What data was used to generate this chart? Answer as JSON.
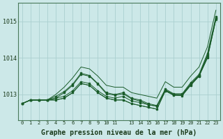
{
  "background_color": "#cce8e8",
  "grid_color": "#aad0d0",
  "line_color": "#1a5c2a",
  "marker_color": "#1a5c2a",
  "xlabel": "Graphe pression niveau de la mer (hPa)",
  "xlabel_fontsize": 7,
  "xtick_labels": [
    "0",
    "1",
    "2",
    "3",
    "4",
    "5",
    "6",
    "7",
    "8",
    "9",
    "10",
    "11",
    "",
    "13",
    "14",
    "15",
    "16",
    "17",
    "18",
    "19",
    "20",
    "21",
    "22",
    "23"
  ],
  "ytick_values": [
    1013,
    1014,
    1015
  ],
  "ylim": [
    1012.3,
    1015.5
  ],
  "xlim": [
    -0.5,
    23.5
  ],
  "series": [
    [
      1012.75,
      1012.85,
      1012.85,
      1012.85,
      1012.85,
      1012.9,
      1013.05,
      1013.3,
      1013.25,
      1013.05,
      1012.9,
      1012.85,
      1012.85,
      1012.75,
      1012.7,
      1012.65,
      1012.6,
      1013.1,
      1012.98,
      1012.97,
      1013.25,
      1013.5,
      1014.0,
      1015.05
    ],
    [
      1012.75,
      1012.85,
      1012.85,
      1012.85,
      1012.9,
      1012.95,
      1013.1,
      1013.35,
      1013.3,
      1013.1,
      1012.95,
      1012.9,
      1012.95,
      1012.82,
      1012.78,
      1012.72,
      1012.68,
      1013.12,
      1013.0,
      1013.0,
      1013.28,
      1013.52,
      1014.05,
      1015.08
    ],
    [
      1012.75,
      1012.85,
      1012.85,
      1012.85,
      1012.9,
      1013.05,
      1013.25,
      1013.55,
      1013.5,
      1013.28,
      1013.02,
      1012.98,
      1013.02,
      1012.88,
      1012.82,
      1012.72,
      1012.68,
      1013.12,
      1013.0,
      1013.0,
      1013.28,
      1013.52,
      1014.08,
      1015.08
    ],
    [
      1012.75,
      1012.85,
      1012.85,
      1012.85,
      1012.95,
      1013.08,
      1013.28,
      1013.58,
      1013.52,
      1013.3,
      1013.05,
      1013.0,
      1013.05,
      1012.9,
      1012.85,
      1012.75,
      1012.7,
      1013.15,
      1013.02,
      1013.02,
      1013.32,
      1013.55,
      1014.12,
      1015.12
    ]
  ],
  "series_wide": [
    [
      1012.75,
      1012.85,
      1012.85,
      1012.85,
      1012.85,
      1012.9,
      1013.05,
      1013.3,
      1013.25,
      1013.05,
      1012.9,
      1012.85,
      1012.85,
      1012.75,
      1012.7,
      1012.65,
      1012.6,
      1013.1,
      1012.98,
      1012.97,
      1013.25,
      1013.5,
      1014.0,
      1015.05
    ],
    [
      1012.75,
      1012.85,
      1012.85,
      1012.85,
      1013.0,
      1013.2,
      1013.45,
      1013.75,
      1013.7,
      1013.5,
      1013.25,
      1013.2,
      1013.2,
      1013.05,
      1013.0,
      1012.95,
      1012.9,
      1013.35,
      1013.2,
      1013.2,
      1013.5,
      1013.75,
      1014.3,
      1015.3
    ]
  ]
}
